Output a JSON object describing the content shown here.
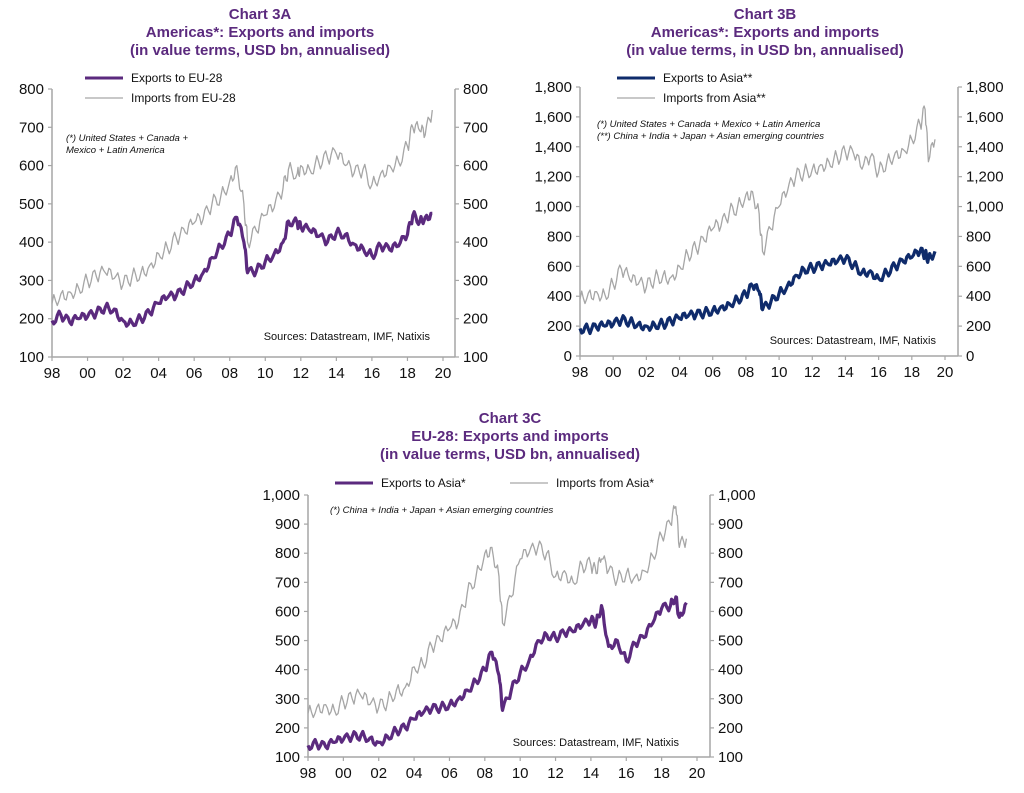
{
  "chart_data": [
    {
      "id": "3A",
      "type": "line",
      "title_lines": [
        "Chart 3A",
        "Americas*: Exports and imports",
        "(in value terms, USD bn, annualised)"
      ],
      "xlabel": "",
      "ylabel": "",
      "x_tick_labels": [
        "98",
        "00",
        "02",
        "04",
        "06",
        "08",
        "10",
        "12",
        "14",
        "16",
        "18",
        "20"
      ],
      "xlim": [
        1998,
        2020
      ],
      "ylim": [
        100,
        800
      ],
      "y_ticks": [
        100,
        200,
        300,
        400,
        500,
        600,
        700,
        800
      ],
      "y_tick_labels": [
        "100",
        "200",
        "300",
        "400",
        "500",
        "600",
        "700",
        "800"
      ],
      "grid": false,
      "legend_placement": "top-left",
      "note": [
        "(*) United States + Canada +",
        "Mexico + Latin America"
      ],
      "source": "Sources:  Datastream,  IMF, Natixis",
      "series": [
        {
          "name": "Exports to EU-28",
          "color": "#5b2a7e",
          "style": "thick",
          "x": [
            1998,
            1998.5,
            1999,
            1999.5,
            2000,
            2000.5,
            2001,
            2001.5,
            2002,
            2002.5,
            2003,
            2003.5,
            2004,
            2004.5,
            2005,
            2005.5,
            2006,
            2006.5,
            2007,
            2007.5,
            2008,
            2008.4,
            2008.8,
            2009,
            2009.5,
            2010,
            2010.5,
            2011,
            2011.3,
            2011.8,
            2012,
            2012.5,
            2013,
            2013.5,
            2014,
            2014.5,
            2015,
            2015.5,
            2016,
            2016.5,
            2017,
            2017.5,
            2018,
            2018.3,
            2018.7,
            2019,
            2019.4
          ],
          "values": [
            195,
            210,
            190,
            200,
            205,
            215,
            230,
            225,
            195,
            190,
            200,
            215,
            240,
            255,
            260,
            280,
            300,
            320,
            360,
            390,
            420,
            465,
            400,
            320,
            325,
            350,
            370,
            400,
            455,
            450,
            440,
            430,
            415,
            400,
            425,
            420,
            395,
            385,
            365,
            390,
            380,
            390,
            420,
            470,
            455,
            465,
            475
          ]
        },
        {
          "name": "Imports from EU-28",
          "color": "#a6a6a6",
          "style": "thin",
          "x": [
            1998,
            1998.5,
            1999,
            1999.5,
            2000,
            2000.5,
            2001,
            2001.5,
            2002,
            2002.5,
            2003,
            2003.5,
            2004,
            2004.5,
            2005,
            2005.5,
            2006,
            2006.5,
            2007,
            2007.5,
            2008,
            2008.4,
            2008.8,
            2009,
            2009.5,
            2010,
            2010.5,
            2011,
            2011.3,
            2011.8,
            2012,
            2012.5,
            2013,
            2013.5,
            2014,
            2014.5,
            2015,
            2015.5,
            2016,
            2016.5,
            2017,
            2017.5,
            2018,
            2018.3,
            2018.7,
            2019,
            2019.4
          ],
          "values": [
            240,
            265,
            270,
            280,
            300,
            310,
            320,
            305,
            290,
            310,
            320,
            340,
            370,
            385,
            410,
            425,
            450,
            460,
            500,
            520,
            560,
            600,
            500,
            400,
            430,
            470,
            490,
            540,
            590,
            580,
            600,
            590,
            610,
            620,
            630,
            600,
            580,
            590,
            550,
            580,
            600,
            610,
            650,
            700,
            690,
            680,
            745
          ]
        }
      ]
    },
    {
      "id": "3B",
      "type": "line",
      "title_lines": [
        "Chart 3B",
        "Americas*: Exports and imports",
        "(in value terms, in USD bn, annualised)"
      ],
      "xlabel": "",
      "ylabel": "",
      "x_tick_labels": [
        "98",
        "00",
        "02",
        "04",
        "06",
        "08",
        "10",
        "12",
        "14",
        "16",
        "18",
        "20"
      ],
      "xlim": [
        1998,
        2020
      ],
      "ylim": [
        0,
        1800
      ],
      "y_ticks": [
        0,
        200,
        400,
        600,
        800,
        1000,
        1200,
        1400,
        1600,
        1800
      ],
      "y_tick_labels": [
        "0",
        "200",
        "400",
        "600",
        "800",
        "1,000",
        "1,200",
        "1,400",
        "1,600",
        "1,800"
      ],
      "grid": false,
      "legend_placement": "top-left",
      "note": [
        "(*) United States + Canada + Mexico + Latin America",
        "(**) China + India + Japan + Asian emerging countries"
      ],
      "source": "Sources:  Datastream,  IMF, Natixis",
      "series": [
        {
          "name": "Exports to Asia**",
          "color": "#0f2b6b",
          "style": "thick",
          "x": [
            1998,
            1998.5,
            1999,
            1999.5,
            2000,
            2000.5,
            2001,
            2001.5,
            2002,
            2002.5,
            2003,
            2003.5,
            2004,
            2004.5,
            2005,
            2005.5,
            2006,
            2006.5,
            2007,
            2007.5,
            2008,
            2008.4,
            2008.8,
            2009,
            2009.5,
            2010,
            2010.5,
            2011,
            2011.5,
            2012,
            2012.5,
            2013,
            2013.5,
            2014,
            2014.5,
            2015,
            2015.5,
            2016,
            2016.5,
            2017,
            2017.5,
            2018,
            2018.5,
            2018.8,
            2019,
            2019.4
          ],
          "values": [
            185,
            180,
            190,
            200,
            210,
            240,
            230,
            215,
            200,
            210,
            215,
            230,
            250,
            265,
            275,
            290,
            305,
            330,
            350,
            380,
            410,
            470,
            430,
            310,
            360,
            420,
            470,
            540,
            580,
            590,
            600,
            610,
            630,
            650,
            610,
            560,
            570,
            520,
            560,
            600,
            630,
            660,
            700,
            680,
            650,
            700
          ]
        },
        {
          "name": "Imports from Asia**",
          "color": "#a6a6a6",
          "style": "thin",
          "x": [
            1998,
            1998.5,
            1999,
            1999.5,
            2000,
            2000.5,
            2001,
            2001.5,
            2002,
            2002.5,
            2003,
            2003.5,
            2004,
            2004.5,
            2005,
            2005.5,
            2006,
            2006.5,
            2007,
            2007.5,
            2008,
            2008.4,
            2008.8,
            2009,
            2009.5,
            2010,
            2010.5,
            2011,
            2011.5,
            2012,
            2012.5,
            2013,
            2013.5,
            2014,
            2014.5,
            2015,
            2015.5,
            2016,
            2016.5,
            2017,
            2017.5,
            2018,
            2018.5,
            2018.8,
            2019,
            2019.4
          ],
          "values": [
            380,
            420,
            430,
            410,
            480,
            580,
            510,
            480,
            460,
            520,
            540,
            530,
            600,
            680,
            720,
            770,
            850,
            870,
            960,
            1000,
            1080,
            1100,
            950,
            700,
            850,
            1000,
            1100,
            1200,
            1230,
            1250,
            1280,
            1300,
            1330,
            1360,
            1350,
            1250,
            1330,
            1230,
            1300,
            1360,
            1380,
            1450,
            1550,
            1650,
            1300,
            1450
          ]
        }
      ]
    },
    {
      "id": "3C",
      "type": "line",
      "title_lines": [
        "Chart 3C",
        "EU-28:  Exports and imports",
        "(in value terms, USD bn, annualised)"
      ],
      "xlabel": "",
      "ylabel": "",
      "x_tick_labels": [
        "98",
        "00",
        "02",
        "04",
        "06",
        "08",
        "10",
        "12",
        "14",
        "16",
        "18",
        "20"
      ],
      "xlim": [
        1998,
        2020
      ],
      "ylim": [
        100,
        1000
      ],
      "y_ticks": [
        100,
        200,
        300,
        400,
        500,
        600,
        700,
        800,
        900,
        1000
      ],
      "y_tick_labels": [
        "100",
        "200",
        "300",
        "400",
        "500",
        "600",
        "700",
        "800",
        "900",
        "1,000"
      ],
      "grid": false,
      "legend_placement": "top",
      "note": [
        "(*) China + India + Japan  + Asian emerging  countries"
      ],
      "source": "Sources:  Datastream,  IMF, Natixis",
      "series": [
        {
          "name": "Exports to Asia*",
          "color": "#5b2a7e",
          "style": "thick",
          "x": [
            1998,
            1998.5,
            1999,
            1999.5,
            2000,
            2000.5,
            2001,
            2001.5,
            2002,
            2002.5,
            2003,
            2003.5,
            2004,
            2004.5,
            2005,
            2005.5,
            2006,
            2006.5,
            2007,
            2007.5,
            2008,
            2008.4,
            2008.8,
            2009,
            2009.5,
            2010,
            2010.5,
            2011,
            2011.5,
            2012,
            2012.5,
            2013,
            2013.5,
            2014,
            2014.3,
            2014.6,
            2015,
            2015.5,
            2016,
            2016.5,
            2017,
            2017.5,
            2018,
            2018.5,
            2018.8,
            2019,
            2019.4
          ],
          "values": [
            140,
            145,
            135,
            150,
            160,
            170,
            175,
            165,
            150,
            170,
            190,
            200,
            230,
            250,
            265,
            270,
            280,
            300,
            330,
            360,
            400,
            460,
            380,
            260,
            330,
            390,
            430,
            500,
            520,
            510,
            525,
            530,
            550,
            570,
            560,
            620,
            480,
            500,
            430,
            490,
            510,
            560,
            610,
            620,
            650,
            580,
            630
          ]
        },
        {
          "name": "Imports from Asia*",
          "color": "#a6a6a6",
          "style": "thin",
          "x": [
            1998,
            1998.5,
            1999,
            1999.5,
            2000,
            2000.5,
            2001,
            2001.5,
            2002,
            2002.5,
            2003,
            2003.5,
            2004,
            2004.5,
            2005,
            2005.5,
            2006,
            2006.5,
            2007,
            2007.5,
            2008,
            2008.4,
            2008.8,
            2009,
            2009.5,
            2010,
            2010.5,
            2011,
            2011.5,
            2012,
            2012.5,
            2013,
            2013.5,
            2014,
            2014.3,
            2014.6,
            2015,
            2015.5,
            2016,
            2016.5,
            2017,
            2017.5,
            2018,
            2018.5,
            2018.8,
            2019,
            2019.4
          ],
          "values": [
            250,
            270,
            280,
            260,
            290,
            300,
            310,
            280,
            270,
            290,
            330,
            340,
            410,
            420,
            480,
            500,
            540,
            560,
            660,
            720,
            800,
            820,
            720,
            560,
            650,
            780,
            800,
            820,
            800,
            720,
            740,
            700,
            760,
            760,
            730,
            780,
            740,
            710,
            730,
            720,
            740,
            790,
            860,
            900,
            960,
            820,
            850
          ]
        }
      ]
    }
  ]
}
